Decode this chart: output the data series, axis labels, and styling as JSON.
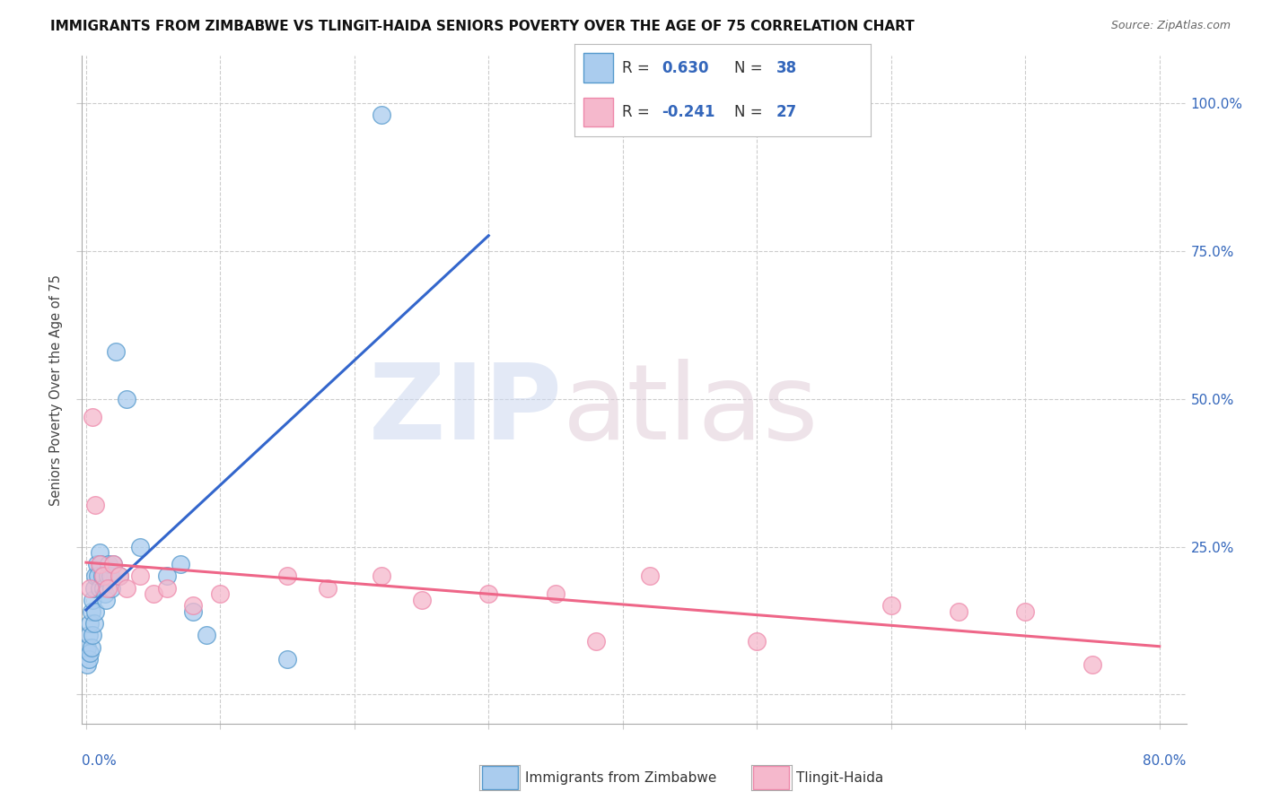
{
  "title": "IMMIGRANTS FROM ZIMBABWE VS TLINGIT-HAIDA SENIORS POVERTY OVER THE AGE OF 75 CORRELATION CHART",
  "source": "Source: ZipAtlas.com",
  "ylabel": "Seniors Poverty Over the Age of 75",
  "legend_blue_r": "0.630",
  "legend_blue_n": "38",
  "legend_pink_r": "-0.241",
  "legend_pink_n": "27",
  "legend_blue_label": "Immigrants from Zimbabwe",
  "legend_pink_label": "Tlingit-Haida",
  "blue_fill": "#aaccee",
  "blue_edge": "#5599cc",
  "pink_fill": "#f5b8cc",
  "pink_edge": "#ee88aa",
  "blue_line": "#3366cc",
  "pink_line": "#ee6688",
  "text_dark": "#333333",
  "text_blue": "#3366bb",
  "grid_color": "#cccccc",
  "blue_x": [
    0.001,
    0.001,
    0.002,
    0.002,
    0.003,
    0.003,
    0.004,
    0.004,
    0.005,
    0.005,
    0.006,
    0.006,
    0.007,
    0.007,
    0.008,
    0.009,
    0.01,
    0.01,
    0.011,
    0.012,
    0.013,
    0.014,
    0.015,
    0.016,
    0.017,
    0.018,
    0.019,
    0.02,
    0.022,
    0.025,
    0.03,
    0.04,
    0.06,
    0.07,
    0.08,
    0.09,
    0.15,
    0.22
  ],
  "blue_y": [
    0.05,
    0.08,
    0.06,
    0.1,
    0.07,
    0.12,
    0.08,
    0.14,
    0.1,
    0.16,
    0.12,
    0.18,
    0.14,
    0.2,
    0.22,
    0.2,
    0.18,
    0.24,
    0.22,
    0.2,
    0.18,
    0.17,
    0.16,
    0.2,
    0.22,
    0.2,
    0.18,
    0.22,
    0.58,
    0.2,
    0.5,
    0.25,
    0.2,
    0.22,
    0.14,
    0.1,
    0.06,
    0.98
  ],
  "pink_x": [
    0.003,
    0.005,
    0.007,
    0.01,
    0.013,
    0.016,
    0.02,
    0.025,
    0.03,
    0.04,
    0.05,
    0.06,
    0.08,
    0.1,
    0.15,
    0.18,
    0.22,
    0.25,
    0.3,
    0.35,
    0.38,
    0.42,
    0.5,
    0.6,
    0.65,
    0.7,
    0.75
  ],
  "pink_y": [
    0.18,
    0.47,
    0.32,
    0.22,
    0.2,
    0.18,
    0.22,
    0.2,
    0.18,
    0.2,
    0.17,
    0.18,
    0.15,
    0.17,
    0.2,
    0.18,
    0.2,
    0.16,
    0.17,
    0.17,
    0.09,
    0.2,
    0.09,
    0.15,
    0.14,
    0.14,
    0.05
  ],
  "xlim_min": -0.003,
  "xlim_max": 0.82,
  "ylim_min": -0.05,
  "ylim_max": 1.08,
  "yticks": [
    0.0,
    0.25,
    0.5,
    0.75,
    1.0
  ],
  "ytick_labels_right": [
    "",
    "25.0%",
    "50.0%",
    "75.0%",
    "100.0%"
  ],
  "xtick_label_left": "0.0%",
  "xtick_label_right": "80.0%"
}
